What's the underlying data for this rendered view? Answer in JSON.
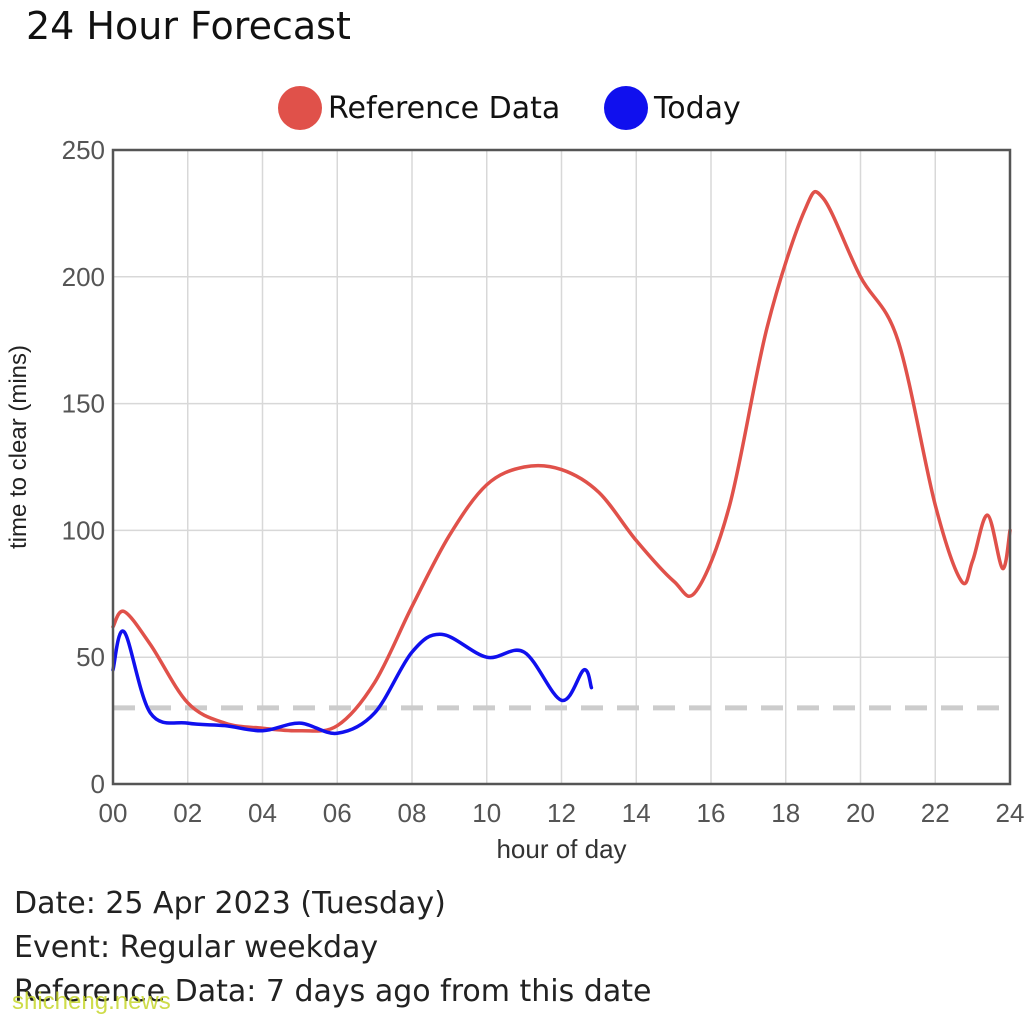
{
  "title": "24 Hour Forecast",
  "legend": [
    {
      "label": "Reference Data",
      "color": "#e0514a"
    },
    {
      "label": "Today",
      "color": "#1010ee"
    }
  ],
  "info": {
    "date": "Date: 25 Apr 2023 (Tuesday)",
    "event": "Event: Regular weekday",
    "reference": "Reference Data: 7 days ago from this date"
  },
  "watermark": "shicheng.news",
  "chart_data": {
    "type": "line",
    "title": "24 Hour Forecast",
    "xlabel": "hour of day",
    "ylabel": "time to clear (mins)",
    "xlim": [
      0,
      24
    ],
    "ylim": [
      0,
      250
    ],
    "x_ticks": [
      "00",
      "02",
      "04",
      "06",
      "08",
      "10",
      "12",
      "14",
      "16",
      "18",
      "20",
      "22",
      "24"
    ],
    "y_ticks": [
      "0",
      "50",
      "100",
      "150",
      "200",
      "250"
    ],
    "grid": true,
    "legend_position": "top",
    "reference_line": {
      "y": 30,
      "style": "dashed",
      "color": "#cccccc"
    },
    "series": [
      {
        "name": "Reference Data",
        "color": "#e0514a",
        "x": [
          0,
          0.3,
          1,
          2,
          3,
          4,
          5,
          6,
          7,
          8,
          9,
          10,
          11,
          12,
          13,
          14,
          15,
          15.6,
          16.5,
          17.5,
          18.5,
          19,
          20,
          21,
          22,
          22.7,
          23,
          23.4,
          23.8,
          24
        ],
        "y": [
          62,
          68,
          55,
          32,
          24,
          22,
          21,
          23,
          40,
          70,
          98,
          118,
          125,
          124,
          115,
          96,
          80,
          76,
          110,
          180,
          226,
          231,
          200,
          175,
          110,
          80,
          88,
          106,
          85,
          100
        ]
      },
      {
        "name": "Today",
        "color": "#1010ee",
        "x": [
          0,
          0.3,
          1,
          2,
          3,
          4,
          5,
          6,
          7,
          8,
          8.8,
          10,
          11,
          12,
          12.6,
          12.8
        ],
        "y": [
          45,
          60,
          28,
          24,
          23,
          21,
          24,
          20,
          28,
          52,
          59,
          50,
          52,
          33,
          45,
          38
        ]
      }
    ]
  }
}
